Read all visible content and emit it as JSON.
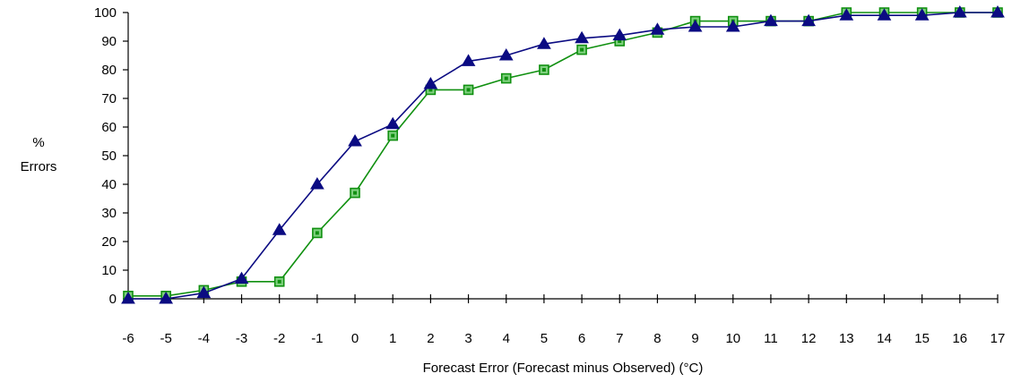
{
  "chart_data": {
    "type": "line",
    "title": "",
    "xlabel": "Forecast Error (Forecast minus Observed) (°C)",
    "ylabel_lines": [
      "%",
      "Errors"
    ],
    "x": [
      -6,
      -5,
      -4,
      -3,
      -2,
      -1,
      0,
      1,
      2,
      3,
      4,
      5,
      6,
      7,
      8,
      9,
      10,
      11,
      12,
      13,
      14,
      15,
      16,
      17
    ],
    "xlim": [
      -6,
      17
    ],
    "ylim": [
      0,
      100
    ],
    "yticks": [
      0,
      10,
      20,
      30,
      40,
      50,
      60,
      70,
      80,
      90,
      100
    ],
    "grid": false,
    "legend": "none",
    "series": [
      {
        "marker": "square",
        "color": "#109010",
        "values": [
          1,
          1,
          3,
          6,
          6,
          23,
          37,
          57,
          73,
          73,
          77,
          80,
          87,
          90,
          93,
          97,
          97,
          97,
          97,
          100,
          100,
          100,
          100,
          100
        ]
      },
      {
        "marker": "triangle",
        "color": "#0b0b82",
        "values": [
          0,
          0,
          2,
          7,
          24,
          40,
          55,
          61,
          75,
          83,
          85,
          89,
          91,
          92,
          94,
          95,
          95,
          97,
          97,
          99,
          99,
          99,
          100,
          100
        ]
      }
    ]
  }
}
